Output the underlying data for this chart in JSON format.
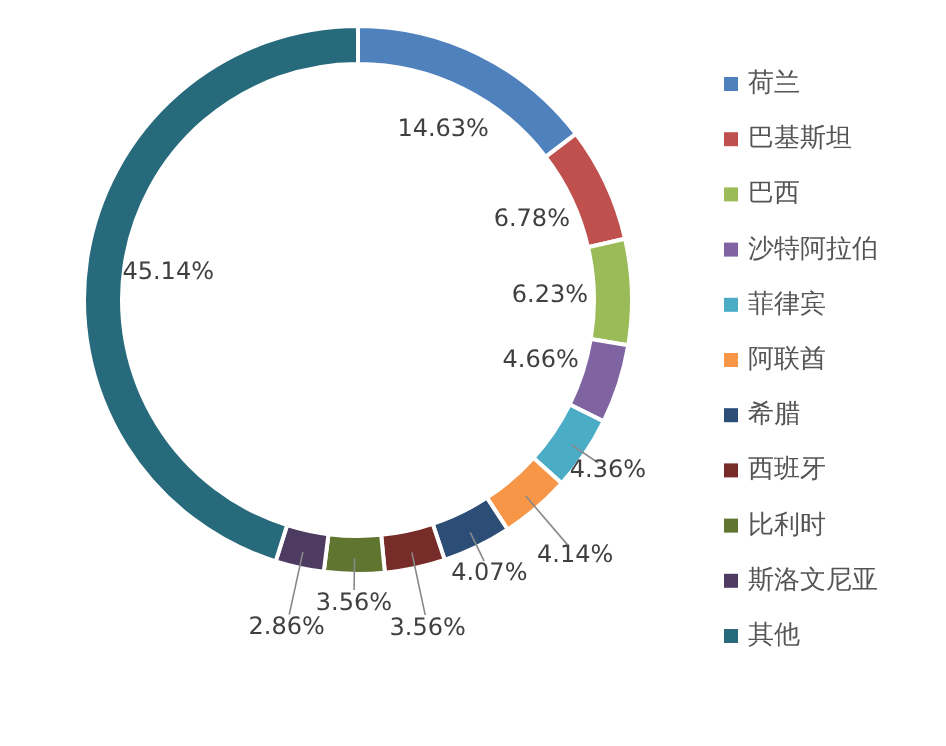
{
  "chart_data": {
    "type": "donut",
    "categories": [
      "荷兰",
      "巴基斯坦",
      "巴西",
      "沙特阿拉伯",
      "菲律宾",
      "阿联酋",
      "希腊",
      "西班牙",
      "比利时",
      "斯洛文尼亚",
      "其他"
    ],
    "values": [
      14.63,
      6.78,
      6.23,
      4.66,
      4.36,
      4.14,
      4.07,
      3.56,
      3.56,
      2.86,
      45.14
    ],
    "colors": [
      "#4f81bd",
      "#c0504d",
      "#9bbb59",
      "#8064a2",
      "#4bacc6",
      "#f79646",
      "#2c4d75",
      "#772c2a",
      "#5f7530",
      "#4d3b62",
      "#276a7c"
    ],
    "value_labels": [
      "14.63%",
      "6.78%",
      "6.23%",
      "4.66%",
      "4.36%",
      "4.14%",
      "4.07%",
      "3.56%",
      "3.56%",
      "2.86%",
      "45.14%"
    ],
    "legend": "right"
  }
}
